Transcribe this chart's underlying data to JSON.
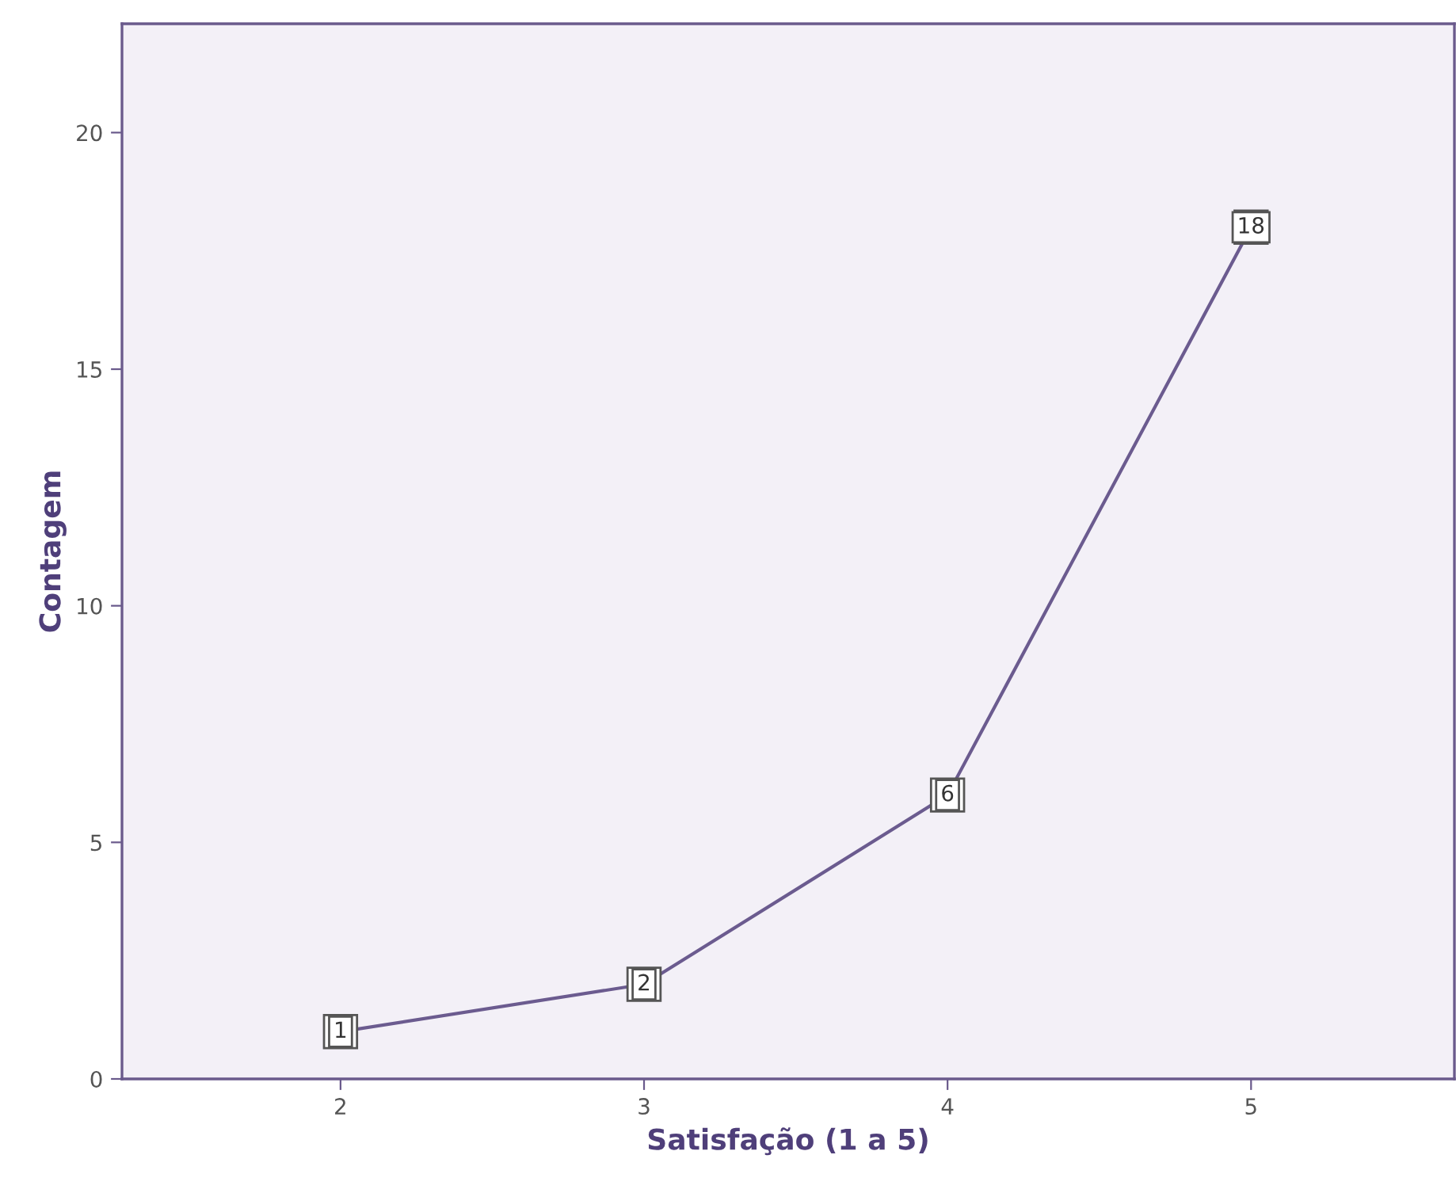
{
  "chart_data": {
    "type": "line",
    "xlabel": "Satisfação (1 a 5)",
    "ylabel": "Contagem",
    "x": [
      2,
      3,
      4,
      5
    ],
    "series": [
      {
        "color": "#6b5b8f",
        "values": [
          1,
          2,
          6,
          18
        ]
      }
    ],
    "xlim": [
      1.28,
      5.67
    ],
    "xticks": [
      2,
      3,
      4,
      5
    ],
    "ylim": [
      0,
      22.3
    ],
    "yticks": [
      0,
      5,
      10,
      15,
      20
    ],
    "data_labels": true,
    "grid": false,
    "marker": "square",
    "line_style": "solid"
  }
}
